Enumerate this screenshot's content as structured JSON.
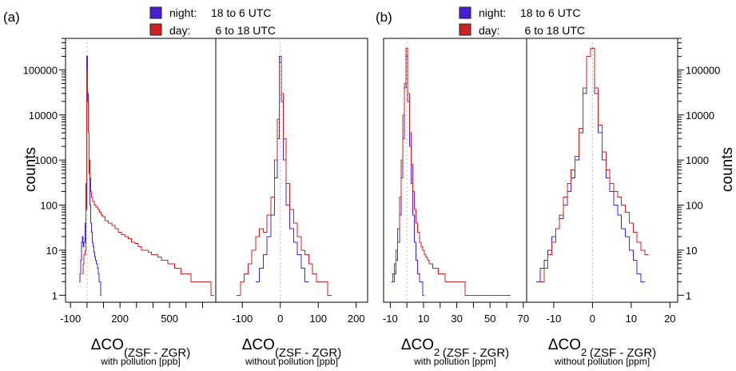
{
  "panel_labels": [
    "(a)",
    "(b)"
  ],
  "legend": {
    "night": {
      "label": "night:",
      "range": "18 to   6 UTC",
      "color": "#4a1fd6"
    },
    "day": {
      "label": "day:",
      "range": "    6 to 18 UTC",
      "color": "#cc2222"
    }
  },
  "ylabel": "counts",
  "chart_data": [
    {
      "type": "histogram",
      "panel": "a-left",
      "x_main": "ΔCO",
      "x_sub": "(ZSF - ZGR)",
      "x_note": "with pollution [ppb]",
      "xlim": [
        -130,
        780
      ],
      "xticks": [
        -100,
        0,
        100,
        200,
        300,
        400,
        500,
        600,
        700
      ],
      "xtick_labels": [
        "-100",
        "",
        "",
        "200",
        "",
        "",
        "500",
        "",
        ""
      ],
      "ylim": [
        0.7,
        500000
      ],
      "yscale": "log",
      "yticks": [
        1,
        10,
        100,
        1000,
        10000,
        100000
      ],
      "yticklabels": [
        "1",
        "10",
        "100",
        "1000",
        "10000",
        "100000"
      ],
      "series": [
        {
          "name": "night",
          "color": "#4a1fd6",
          "x": [
            -45,
            -40,
            -35,
            -30,
            -25,
            -20,
            -15,
            -10,
            -5,
            0,
            5,
            10,
            15,
            20,
            25,
            30,
            35,
            40,
            45,
            50,
            55,
            60,
            65,
            70,
            75,
            80,
            85
          ],
          "y": [
            2,
            3,
            6,
            15,
            20,
            12,
            15,
            40,
            300,
            200000,
            30000,
            4000,
            500,
            100,
            40,
            25,
            15,
            12,
            9,
            7,
            6,
            5,
            4,
            3,
            2,
            2,
            1
          ]
        },
        {
          "name": "day",
          "color": "#cc2222",
          "x": [
            -25,
            -20,
            -15,
            -10,
            -5,
            0,
            5,
            10,
            15,
            20,
            25,
            30,
            40,
            50,
            60,
            70,
            80,
            90,
            100,
            120,
            140,
            160,
            180,
            200,
            220,
            240,
            260,
            280,
            300,
            320,
            340,
            360,
            380,
            400,
            420,
            440,
            460,
            480,
            500,
            520,
            540,
            560,
            580,
            600,
            620,
            640,
            660,
            680,
            700,
            720,
            740,
            760
          ],
          "y": [
            3,
            5,
            8,
            10,
            80,
            100000,
            20000,
            4000,
            1000,
            400,
            200,
            150,
            120,
            100,
            90,
            80,
            70,
            60,
            55,
            45,
            40,
            35,
            30,
            25,
            22,
            20,
            18,
            15,
            14,
            12,
            10,
            10,
            9,
            8,
            8,
            7,
            6,
            6,
            5,
            5,
            4,
            4,
            3,
            3,
            3,
            2,
            2,
            2,
            2,
            2,
            2,
            1
          ]
        }
      ]
    },
    {
      "type": "histogram",
      "panel": "a-right",
      "x_main": "ΔCO",
      "x_sub": "(ZSF - ZGR)",
      "x_note": "without pollution [ppb]",
      "xlim": [
        -170,
        230
      ],
      "xticks": [
        -100,
        0,
        100,
        200
      ],
      "xtick_labels": [
        "-100",
        "0",
        "100",
        "200"
      ],
      "ylim": [
        0.7,
        500000
      ],
      "yscale": "log",
      "series": [
        {
          "name": "night",
          "color": "#4a1fd6",
          "x": [
            -60,
            -50,
            -40,
            -30,
            -20,
            -10,
            -5,
            0,
            5,
            10,
            20,
            30,
            40,
            50,
            60,
            70
          ],
          "y": [
            2,
            4,
            8,
            20,
            60,
            400,
            3000,
            200000,
            20000,
            1000,
            100,
            30,
            15,
            8,
            4,
            2
          ]
        },
        {
          "name": "day",
          "color": "#cc2222",
          "x": [
            -110,
            -100,
            -90,
            -80,
            -70,
            -60,
            -50,
            -40,
            -30,
            -20,
            -10,
            -5,
            0,
            5,
            10,
            20,
            30,
            40,
            50,
            60,
            70,
            80,
            90,
            100,
            110,
            120,
            130
          ],
          "y": [
            1,
            2,
            3,
            5,
            10,
            20,
            30,
            25,
            60,
            150,
            1000,
            8000,
            150000,
            30000,
            3000,
            300,
            80,
            40,
            20,
            10,
            8,
            5,
            3,
            2,
            2,
            2,
            1
          ]
        }
      ]
    },
    {
      "type": "histogram",
      "panel": "b-left",
      "x_main": "ΔCO",
      "x_subscript": "2",
      "x_sub": "(ZSF - ZGR)",
      "x_note": "with pollution [ppm]",
      "xlim": [
        -14,
        72
      ],
      "xticks": [
        -10,
        0,
        10,
        20,
        30,
        40,
        50,
        60,
        70
      ],
      "xtick_labels": [
        "-10",
        "",
        "10",
        "",
        "30",
        "",
        "50",
        "",
        "70"
      ],
      "ylim": [
        0.7,
        500000
      ],
      "yscale": "log",
      "series": [
        {
          "name": "night",
          "color": "#4a1fd6",
          "x": [
            -8,
            -7,
            -6,
            -5,
            -4,
            -3,
            -2,
            -1,
            0,
            1,
            2,
            3,
            4,
            5,
            6,
            7,
            8,
            9,
            10
          ],
          "y": [
            2,
            3,
            6,
            15,
            60,
            400,
            3000,
            40000,
            200000,
            20000,
            2000,
            300,
            60,
            15,
            6,
            3,
            2,
            2,
            1
          ]
        },
        {
          "name": "day",
          "color": "#cc2222",
          "x": [
            -9,
            -8,
            -7,
            -6,
            -5,
            -4,
            -3,
            -2,
            -1,
            0,
            1,
            2,
            3,
            4,
            5,
            6,
            7,
            8,
            9,
            10,
            11,
            12,
            13,
            14,
            15,
            16,
            18,
            20,
            22,
            24,
            26,
            28,
            30,
            32,
            34,
            36,
            38,
            40,
            45,
            50,
            55,
            60
          ],
          "y": [
            2,
            3,
            5,
            10,
            30,
            150,
            1000,
            10000,
            50000,
            300000,
            30000,
            4000,
            800,
            200,
            80,
            40,
            25,
            15,
            12,
            10,
            8,
            7,
            6,
            5,
            5,
            4,
            4,
            3,
            3,
            2,
            2,
            2,
            2,
            2,
            2,
            1,
            1,
            1,
            1,
            1,
            1,
            1
          ]
        }
      ]
    },
    {
      "type": "histogram",
      "panel": "b-right",
      "x_main": "ΔCO",
      "x_subscript": "2",
      "x_sub": "(ZSF - ZGR)",
      "x_note": "without pollution [ppm]",
      "xlim": [
        -17,
        22
      ],
      "xticks": [
        -10,
        0,
        10,
        20
      ],
      "xtick_labels": [
        "-10",
        "0",
        "10",
        "20"
      ],
      "ylim": [
        0.7,
        500000
      ],
      "yscale": "log",
      "series": [
        {
          "name": "night",
          "color": "#4a1fd6",
          "x": [
            -14,
            -13,
            -12,
            -11,
            -10,
            -9,
            -8,
            -7,
            -6,
            -5,
            -4,
            -3,
            -2,
            -1,
            0,
            1,
            2,
            3,
            4,
            5,
            6,
            7,
            8,
            9,
            10,
            11,
            12,
            13
          ],
          "y": [
            2,
            4,
            6,
            10,
            20,
            30,
            50,
            100,
            200,
            400,
            1000,
            4000,
            30000,
            200000,
            300000,
            30000,
            4000,
            1000,
            400,
            200,
            100,
            60,
            30,
            20,
            10,
            6,
            3,
            2
          ]
        },
        {
          "name": "day",
          "color": "#cc2222",
          "x": [
            -13,
            -12,
            -11,
            -10,
            -9,
            -8,
            -7,
            -6,
            -5,
            -4,
            -3,
            -2,
            -1,
            0,
            1,
            2,
            3,
            4,
            5,
            6,
            7,
            8,
            9,
            10,
            11,
            12,
            13,
            14
          ],
          "y": [
            2,
            4,
            8,
            15,
            30,
            60,
            150,
            300,
            600,
            1200,
            5000,
            40000,
            200000,
            300000,
            40000,
            6000,
            1500,
            600,
            300,
            200,
            150,
            100,
            70,
            40,
            25,
            15,
            10,
            8
          ]
        }
      ]
    }
  ]
}
